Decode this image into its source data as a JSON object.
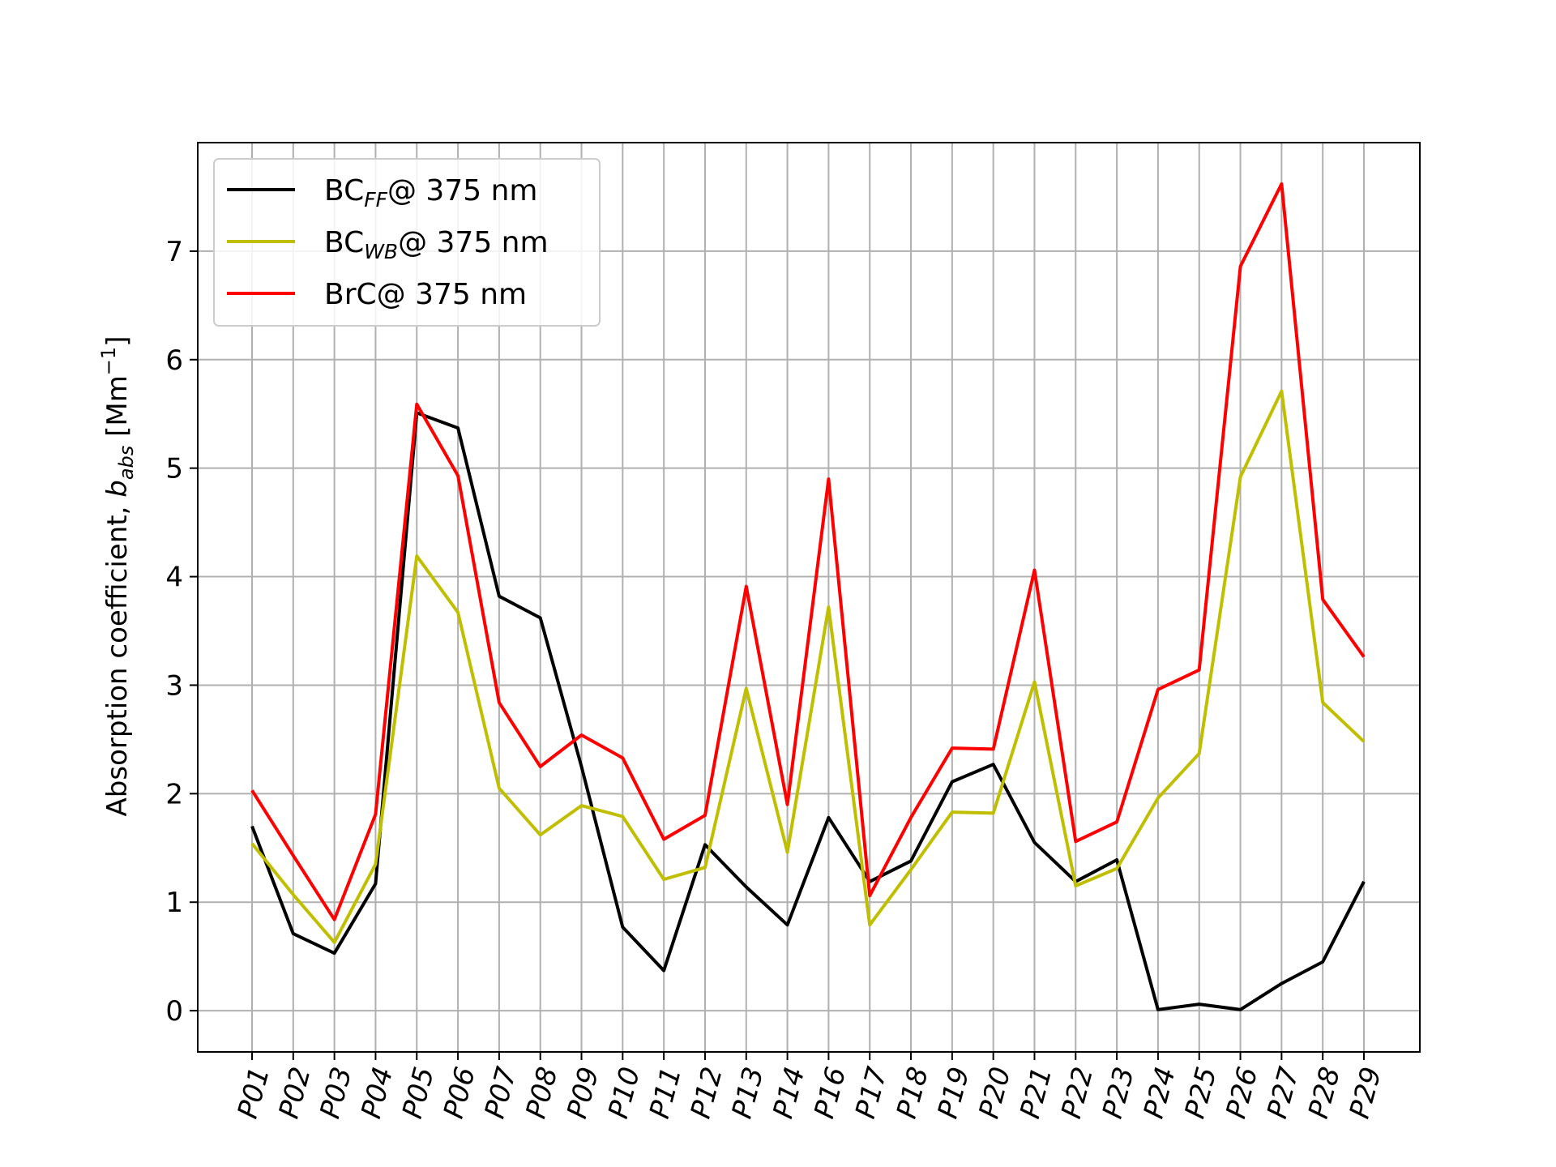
{
  "chart_data": {
    "type": "line",
    "categories": [
      "P01",
      "P02",
      "P03",
      "P04",
      "P05",
      "P06",
      "P07",
      "P08",
      "P09",
      "P10",
      "P11",
      "P12",
      "P13",
      "P14",
      "P16",
      "P17",
      "P18",
      "P19",
      "P20",
      "P21",
      "P22",
      "P23",
      "P24",
      "P25",
      "P26",
      "P27",
      "P28",
      "P29"
    ],
    "series": [
      {
        "name": "BC_FF@ 375 nm",
        "name_main": "BC",
        "name_sub": "FF",
        "name_tail": "@ 375 nm",
        "color": "#000000",
        "values": [
          1.7,
          0.71,
          0.53,
          1.17,
          5.51,
          5.37,
          3.82,
          3.62,
          2.25,
          0.77,
          0.37,
          1.53,
          1.14,
          0.79,
          1.78,
          1.19,
          1.38,
          2.11,
          2.27,
          1.55,
          1.19,
          1.39,
          0.01,
          0.06,
          0.01,
          0.25,
          0.45,
          1.19
        ]
      },
      {
        "name": "BC_WB@ 375 nm",
        "name_main": "BC",
        "name_sub": "WB",
        "name_tail": "@ 375 nm",
        "color": "#bfbf00",
        "values": [
          1.54,
          1.07,
          0.63,
          1.35,
          4.19,
          3.67,
          2.05,
          1.62,
          1.89,
          1.79,
          1.21,
          1.32,
          2.97,
          1.46,
          3.72,
          0.79,
          1.3,
          1.83,
          1.82,
          3.03,
          1.15,
          1.31,
          1.96,
          2.37,
          4.92,
          5.71,
          2.84,
          2.48
        ]
      },
      {
        "name": "BrC@ 375 nm",
        "name_main": "BrC",
        "name_sub": "",
        "name_tail": "@ 375 nm",
        "color": "#ff0000",
        "values": [
          2.03,
          1.43,
          0.84,
          1.81,
          5.59,
          4.93,
          2.84,
          2.25,
          2.54,
          2.33,
          1.58,
          1.8,
          3.91,
          1.9,
          4.9,
          1.06,
          1.78,
          2.42,
          2.41,
          4.06,
          1.56,
          1.74,
          2.96,
          3.14,
          6.86,
          7.62,
          3.79,
          3.26
        ]
      }
    ],
    "xlabel": "",
    "ylabel": "Absorption coefficient, b_abs  [Mm^-1]",
    "ylabel_parts": {
      "main": "Absorption coefficient, ",
      "var": "b",
      "var_sub": "abs",
      "unit_open": "  [Mm",
      "unit_sup": "−1",
      "unit_close": "]"
    },
    "ylim": [
      -0.38,
      8.0
    ],
    "yticks": [
      0,
      1,
      2,
      3,
      4,
      5,
      6,
      7
    ],
    "grid": true,
    "legend_position": "upper-left",
    "title": ""
  }
}
